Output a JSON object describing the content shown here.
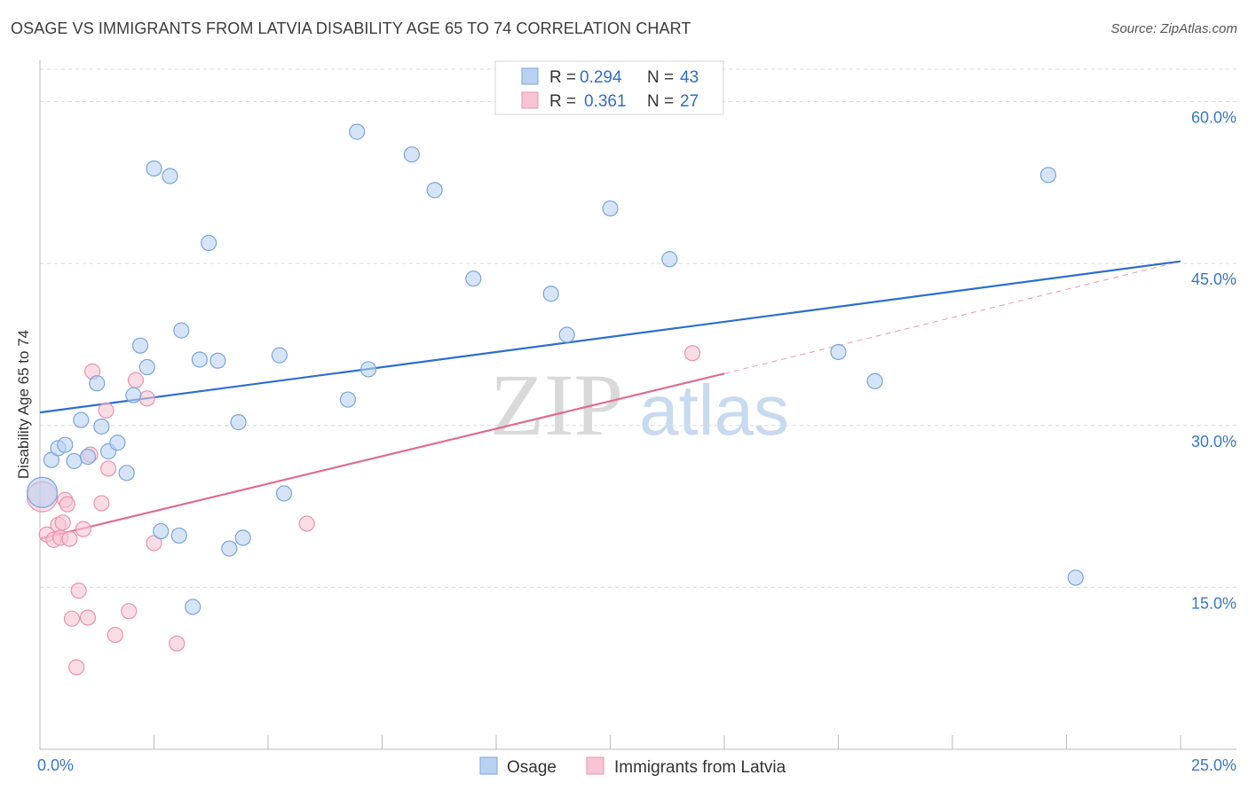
{
  "title": "OSAGE VS IMMIGRANTS FROM LATVIA DISABILITY AGE 65 TO 74 CORRELATION CHART",
  "source": "Source: ZipAtlas.com",
  "watermark": {
    "zip": "ZIP",
    "atlas": "atlas"
  },
  "colors": {
    "blue_fill": "#b9d2f2",
    "blue_stroke": "#7aa6dc",
    "blue_line": "#2b6fce",
    "pink_fill": "#f7c5d4",
    "pink_stroke": "#ea93b0",
    "pink_line": "#e06c93",
    "grid": "#dcdcdc",
    "tick_text": "#3a78c8"
  },
  "legend": {
    "rows": [
      {
        "r_label": "R =",
        "r_value": "0.294",
        "n_label": "N =",
        "n_value": "43"
      },
      {
        "r_label": "R =",
        "r_value": "0.361",
        "n_label": "N =",
        "n_value": "27"
      }
    ]
  },
  "chart_data": {
    "type": "scatter",
    "title": "OSAGE VS IMMIGRANTS FROM LATVIA DISABILITY AGE 65 TO 74 CORRELATION CHART",
    "xlabel": "",
    "ylabel": "Disability Age 65 to 74",
    "xlim": [
      0,
      25
    ],
    "ylim": [
      0,
      63
    ],
    "x_tick_labels": [
      "0.0%",
      "25.0%"
    ],
    "y_ticks": [
      15,
      30,
      45,
      60
    ],
    "y_tick_labels": [
      "15.0%",
      "30.0%",
      "45.0%",
      "60.0%"
    ],
    "legend_position": "top-center",
    "series": [
      {
        "name": "Osage",
        "r": 0.294,
        "n": 43,
        "points": [
          [
            0.05,
            23.8
          ],
          [
            0.25,
            26.8
          ],
          [
            0.4,
            27.9
          ],
          [
            0.55,
            28.2
          ],
          [
            0.75,
            26.7
          ],
          [
            0.9,
            30.5
          ],
          [
            1.05,
            27.1
          ],
          [
            1.25,
            33.9
          ],
          [
            1.35,
            29.9
          ],
          [
            1.5,
            27.6
          ],
          [
            1.7,
            28.4
          ],
          [
            1.9,
            25.6
          ],
          [
            2.05,
            32.8
          ],
          [
            2.2,
            37.4
          ],
          [
            2.35,
            35.4
          ],
          [
            2.5,
            53.8
          ],
          [
            2.65,
            20.2
          ],
          [
            2.85,
            53.1
          ],
          [
            3.05,
            19.8
          ],
          [
            3.1,
            38.8
          ],
          [
            3.35,
            13.2
          ],
          [
            3.5,
            36.1
          ],
          [
            3.7,
            46.9
          ],
          [
            3.9,
            36.0
          ],
          [
            4.15,
            18.6
          ],
          [
            4.35,
            30.3
          ],
          [
            4.45,
            19.6
          ],
          [
            5.25,
            36.5
          ],
          [
            5.35,
            23.7
          ],
          [
            6.75,
            32.4
          ],
          [
            6.95,
            57.2
          ],
          [
            7.2,
            35.2
          ],
          [
            8.15,
            55.1
          ],
          [
            8.65,
            51.8
          ],
          [
            9.5,
            43.6
          ],
          [
            11.2,
            42.2
          ],
          [
            11.55,
            38.4
          ],
          [
            12.5,
            50.1
          ],
          [
            13.8,
            45.4
          ],
          [
            17.5,
            36.8
          ],
          [
            18.3,
            34.1
          ],
          [
            22.1,
            53.2
          ],
          [
            22.7,
            15.9
          ]
        ]
      },
      {
        "name": "Immigrants from Latvia",
        "r": 0.361,
        "n": 27,
        "points": [
          [
            0.05,
            23.4
          ],
          [
            0.15,
            19.9
          ],
          [
            0.3,
            19.4
          ],
          [
            0.4,
            20.8
          ],
          [
            0.45,
            19.6
          ],
          [
            0.5,
            21.0
          ],
          [
            0.55,
            23.1
          ],
          [
            0.6,
            22.7
          ],
          [
            0.65,
            19.5
          ],
          [
            0.7,
            12.1
          ],
          [
            0.8,
            7.6
          ],
          [
            0.85,
            14.7
          ],
          [
            0.95,
            20.4
          ],
          [
            1.05,
            12.2
          ],
          [
            1.1,
            27.3
          ],
          [
            1.15,
            35.0
          ],
          [
            1.35,
            22.8
          ],
          [
            1.45,
            31.4
          ],
          [
            1.5,
            26.0
          ],
          [
            1.65,
            10.6
          ],
          [
            1.95,
            12.8
          ],
          [
            2.1,
            34.2
          ],
          [
            2.35,
            32.5
          ],
          [
            2.5,
            19.1
          ],
          [
            3.0,
            9.8
          ],
          [
            5.85,
            20.9
          ],
          [
            14.3,
            36.7
          ]
        ]
      }
    ],
    "trend_lines": [
      {
        "series": "Osage",
        "from": [
          0,
          31.2
        ],
        "to": [
          25,
          45.2
        ]
      },
      {
        "series": "Immigrants from Latvia",
        "from": [
          0,
          19.5
        ],
        "to": [
          15.0,
          34.8
        ],
        "dashed_to": [
          25,
          45.2
        ]
      }
    ]
  },
  "bottom_legend": {
    "items": [
      "Osage",
      "Immigrants from Latvia"
    ]
  }
}
